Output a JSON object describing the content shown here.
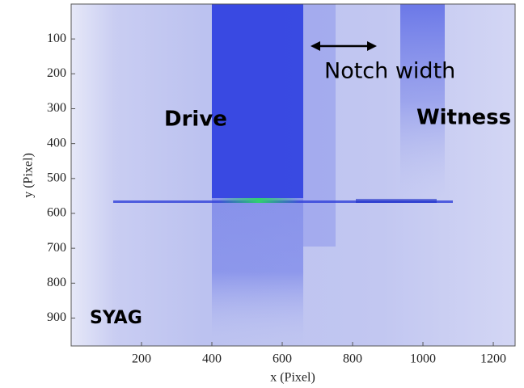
{
  "chart_data": {
    "type": "image",
    "xlabel": "x  (Pixel)",
    "ylabel": "y  (Pixel)",
    "xlim": [
      0,
      1262
    ],
    "ylim": [
      0,
      980
    ],
    "y_reversed": true,
    "xticks": [
      200,
      400,
      600,
      800,
      1000,
      1200
    ],
    "yticks": [
      100,
      200,
      300,
      400,
      500,
      600,
      700,
      800,
      900
    ],
    "annotations": [
      "Notch width",
      "Drive",
      "Witness",
      "SYAG"
    ]
  }
}
